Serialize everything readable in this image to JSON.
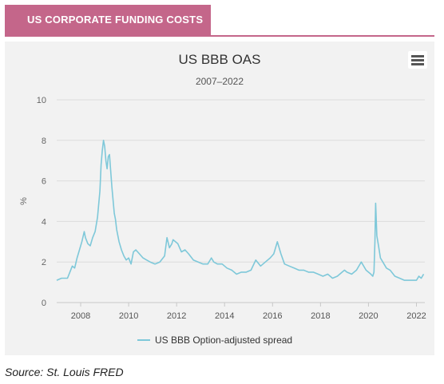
{
  "header": {
    "title": "US CORPORATE FUNDING COSTS"
  },
  "menu": {
    "icon": "hamburger-menu-icon"
  },
  "source": "Source: St. Louis FRED",
  "colors": {
    "accent": "#c4668a",
    "series": "#7ec8d9",
    "panel": "#f2f2f2"
  },
  "chart_data": {
    "type": "line",
    "title": "US BBB OAS",
    "subtitle": "2007–2022",
    "xlabel": "",
    "ylabel": "%",
    "ylim": [
      0,
      10
    ],
    "xlim": [
      2007.0,
      2022.35
    ],
    "yticks": [
      "0",
      "2",
      "4",
      "6",
      "8",
      "10"
    ],
    "xticks": [
      "2008",
      "2010",
      "2012",
      "2014",
      "2016",
      "2018",
      "2020",
      "2022"
    ],
    "grid": true,
    "legend": "bottom",
    "series": [
      {
        "name": "US BBB Option-adjusted spread",
        "x": [
          2007.0,
          2007.2,
          2007.45,
          2007.55,
          2007.65,
          2007.75,
          2007.85,
          2007.95,
          2008.05,
          2008.15,
          2008.2,
          2008.3,
          2008.4,
          2008.5,
          2008.6,
          2008.7,
          2008.8,
          2008.85,
          2008.9,
          2008.95,
          2009.0,
          2009.05,
          2009.1,
          2009.15,
          2009.2,
          2009.25,
          2009.3,
          2009.4,
          2009.45,
          2009.5,
          2009.6,
          2009.7,
          2009.8,
          2009.9,
          2010.0,
          2010.1,
          2010.2,
          2010.3,
          2010.45,
          2010.6,
          2010.75,
          2010.9,
          2011.1,
          2011.3,
          2011.5,
          2011.6,
          2011.7,
          2011.8,
          2011.85,
          2011.95,
          2012.05,
          2012.2,
          2012.35,
          2012.5,
          2012.7,
          2012.9,
          2013.1,
          2013.3,
          2013.45,
          2013.55,
          2013.7,
          2013.9,
          2014.1,
          2014.3,
          2014.5,
          2014.7,
          2014.9,
          2015.1,
          2015.3,
          2015.5,
          2015.7,
          2015.9,
          2016.05,
          2016.1,
          2016.2,
          2016.35,
          2016.5,
          2016.7,
          2016.9,
          2017.1,
          2017.3,
          2017.5,
          2017.7,
          2017.9,
          2018.1,
          2018.3,
          2018.5,
          2018.7,
          2018.9,
          2019.0,
          2019.1,
          2019.3,
          2019.5,
          2019.7,
          2019.9,
          2020.1,
          2020.18,
          2020.23,
          2020.27,
          2020.3,
          2020.35,
          2020.42,
          2020.5,
          2020.6,
          2020.75,
          2020.9,
          2021.1,
          2021.3,
          2021.5,
          2021.7,
          2021.9,
          2022.0,
          2022.1,
          2022.2,
          2022.3
        ],
        "values": [
          1.1,
          1.2,
          1.2,
          1.5,
          1.8,
          1.7,
          2.2,
          2.6,
          3.0,
          3.5,
          3.2,
          2.9,
          2.8,
          3.2,
          3.5,
          4.2,
          5.5,
          6.8,
          7.5,
          8.0,
          7.7,
          7.0,
          6.6,
          7.2,
          7.3,
          6.5,
          5.7,
          4.4,
          4.1,
          3.6,
          3.0,
          2.6,
          2.3,
          2.1,
          2.2,
          1.9,
          2.5,
          2.6,
          2.4,
          2.2,
          2.1,
          2.0,
          1.9,
          2.0,
          2.3,
          3.2,
          2.7,
          2.9,
          3.1,
          3.0,
          2.9,
          2.5,
          2.6,
          2.4,
          2.1,
          2.0,
          1.9,
          1.9,
          2.2,
          2.0,
          1.9,
          1.9,
          1.7,
          1.6,
          1.4,
          1.5,
          1.5,
          1.6,
          2.1,
          1.8,
          2.0,
          2.2,
          2.4,
          2.6,
          3.0,
          2.4,
          1.9,
          1.8,
          1.7,
          1.6,
          1.6,
          1.5,
          1.5,
          1.4,
          1.3,
          1.4,
          1.2,
          1.3,
          1.5,
          1.6,
          1.5,
          1.4,
          1.6,
          2.0,
          1.6,
          1.4,
          1.3,
          1.5,
          3.0,
          4.9,
          3.3,
          2.8,
          2.2,
          2.0,
          1.7,
          1.6,
          1.3,
          1.2,
          1.1,
          1.1,
          1.1,
          1.1,
          1.3,
          1.2,
          1.4
        ]
      }
    ]
  }
}
